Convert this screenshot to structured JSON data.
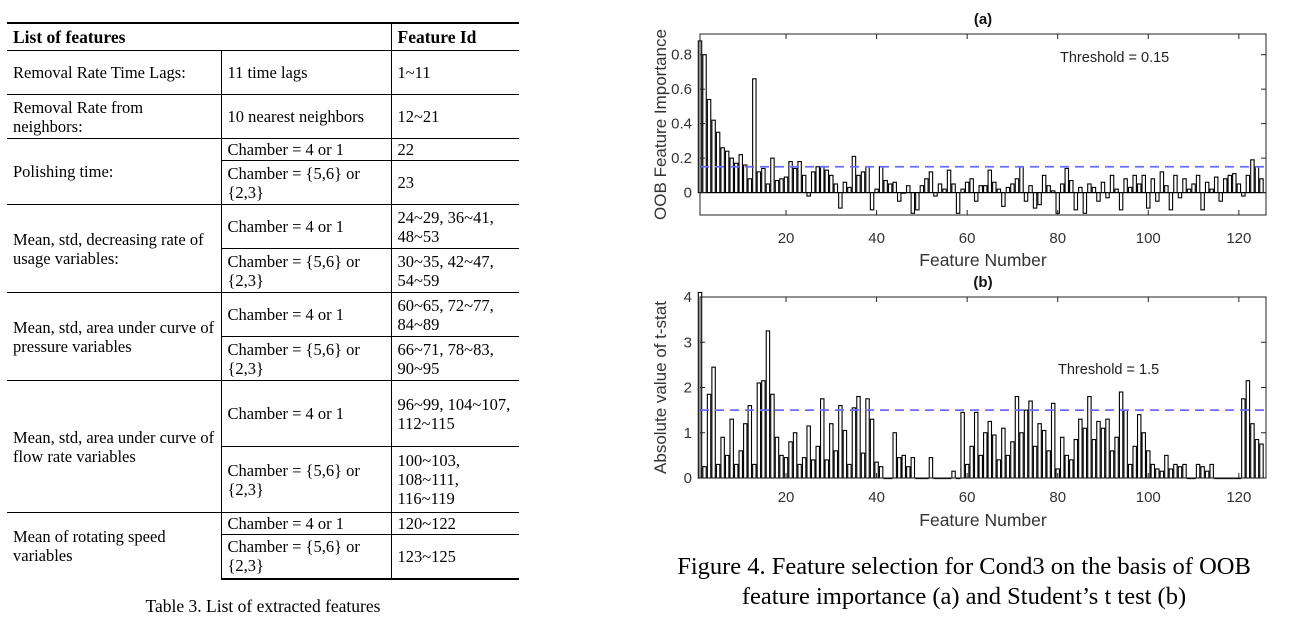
{
  "table": {
    "headers": [
      "List of features",
      "Feature Id"
    ],
    "rows": [
      {
        "group": "Removal Rate Time Lags:",
        "cond": "11 time lags",
        "ids": "1~11"
      },
      {
        "group": "Removal Rate from neighbors:",
        "cond": "10 nearest neighbors",
        "ids": "12~21"
      },
      {
        "group": "Polishing time:",
        "cond": "Chamber = 4 or 1",
        "ids": "22"
      },
      {
        "group": "",
        "cond": "Chamber = {5,6} or {2,3}",
        "ids": "23"
      },
      {
        "group": "Mean, std, decreasing rate of usage variables:",
        "cond": "Chamber = 4 or 1",
        "ids": "24~29, 36~41, 48~53"
      },
      {
        "group": "",
        "cond": "Chamber = {5,6} or {2,3}",
        "ids": "30~35, 42~47, 54~59"
      },
      {
        "group": "Mean, std, area under curve of pressure variables",
        "cond": "Chamber = 4 or 1",
        "ids": "60~65, 72~77, 84~89"
      },
      {
        "group": "",
        "cond": "Chamber = {5,6} or {2,3}",
        "ids": "66~71, 78~83, 90~95"
      },
      {
        "group": "Mean, std, area under curve of flow rate variables",
        "cond": "Chamber = 4 or 1",
        "ids": "96~99, 104~107, 112~115"
      },
      {
        "group": "",
        "cond": "Chamber = {5,6} or {2,3}",
        "ids": "100~103, 108~111, 116~119"
      },
      {
        "group": "Mean of rotating speed variables",
        "cond": "Chamber = 4 or 1",
        "ids": "120~122"
      },
      {
        "group": "",
        "cond": "Chamber = {5,6} or {2,3}",
        "ids": "123~125"
      }
    ],
    "caption": "Table 3. List of extracted features"
  },
  "figure": {
    "caption_line1": "Figure 4. Feature selection for Cond3 on the basis of OOB",
    "caption_line2": "feature importance (a) and Student’s t test (b)"
  },
  "chart_data": [
    {
      "type": "bar",
      "title": "(a)",
      "xlabel": "Feature Number",
      "ylabel": "OOB Feature Importance",
      "xlim": [
        1,
        126
      ],
      "ylim": [
        -0.13,
        0.92
      ],
      "xticks": [
        "20",
        "40",
        "60",
        "80",
        "100",
        "120"
      ],
      "yticks": [
        "0",
        "0.2",
        "0.4",
        "0.6",
        "0.8"
      ],
      "threshold": 0.15,
      "threshold_label": "Threshold = 0.15",
      "threshold_color": "#6b6bff",
      "x": [
        1,
        2,
        3,
        4,
        5,
        6,
        7,
        8,
        9,
        10,
        11,
        12,
        13,
        14,
        15,
        16,
        17,
        18,
        19,
        20,
        21,
        22,
        23,
        24,
        25,
        26,
        27,
        28,
        29,
        30,
        31,
        32,
        33,
        34,
        35,
        36,
        37,
        38,
        39,
        40,
        41,
        42,
        43,
        44,
        45,
        46,
        47,
        48,
        49,
        50,
        51,
        52,
        53,
        54,
        55,
        56,
        57,
        58,
        59,
        60,
        61,
        62,
        63,
        64,
        65,
        66,
        67,
        68,
        69,
        70,
        71,
        72,
        73,
        74,
        75,
        76,
        77,
        78,
        79,
        80,
        81,
        82,
        83,
        84,
        85,
        86,
        87,
        88,
        89,
        90,
        91,
        92,
        93,
        94,
        95,
        96,
        97,
        98,
        99,
        100,
        101,
        102,
        103,
        104,
        105,
        106,
        107,
        108,
        109,
        110,
        111,
        112,
        113,
        114,
        115,
        116,
        117,
        118,
        119,
        120,
        121,
        122,
        123,
        124,
        125
      ],
      "values": [
        0.88,
        0.8,
        0.54,
        0.42,
        0.35,
        0.26,
        0.24,
        0.2,
        0.17,
        0.22,
        0.16,
        0.08,
        0.66,
        0.12,
        0.14,
        0.05,
        0.2,
        0.07,
        0.08,
        0.09,
        0.18,
        0.14,
        0.18,
        0.1,
        -0.02,
        0.12,
        0.15,
        0.15,
        0.13,
        0.1,
        0.05,
        -0.09,
        0.06,
        0.03,
        0.21,
        0.1,
        0.12,
        0.15,
        -0.1,
        0.02,
        0.15,
        0.07,
        0.05,
        0.06,
        -0.05,
        0.0,
        0.04,
        -0.12,
        -0.1,
        0.04,
        0.08,
        0.12,
        -0.02,
        0.05,
        0.02,
        0.13,
        0.05,
        -0.12,
        0.02,
        0.06,
        0.08,
        -0.05,
        0.04,
        0.04,
        0.13,
        0.06,
        0.02,
        -0.08,
        0.03,
        0.05,
        0.08,
        0.15,
        -0.05,
        0.04,
        -0.09,
        -0.07,
        0.1,
        0.04,
        0.01,
        -0.12,
        0.05,
        0.14,
        0.07,
        -0.1,
        0.03,
        -0.12,
        0.05,
        0.03,
        -0.05,
        0.06,
        -0.03,
        0.1,
        0.02,
        -0.1,
        0.08,
        0.03,
        0.1,
        0.05,
        0.1,
        -0.09,
        0.08,
        -0.05,
        0.12,
        0.04,
        -0.1,
        0.1,
        -0.03,
        0.08,
        0.02,
        0.05,
        0.1,
        -0.1,
        0.06,
        0.02,
        0.09,
        -0.05,
        0.08,
        0.1,
        0.11,
        0.05,
        -0.02,
        0.1,
        0.19,
        0.15,
        0.08
      ]
    },
    {
      "type": "bar",
      "title": "(b)",
      "xlabel": "Feature Number",
      "ylabel": "Absolute value of t-stat",
      "xlim": [
        1,
        126
      ],
      "ylim": [
        0,
        4.0
      ],
      "xticks": [
        "20",
        "40",
        "60",
        "80",
        "100",
        "120"
      ],
      "yticks": [
        "0",
        "1",
        "2",
        "3",
        "4"
      ],
      "threshold": 1.5,
      "threshold_label": "Threshold = 1.5",
      "threshold_color": "#6b6bff",
      "x": [
        1,
        2,
        3,
        4,
        5,
        6,
        7,
        8,
        9,
        10,
        11,
        12,
        13,
        14,
        15,
        16,
        17,
        18,
        19,
        20,
        21,
        22,
        23,
        24,
        25,
        26,
        27,
        28,
        29,
        30,
        31,
        32,
        33,
        34,
        35,
        36,
        37,
        38,
        39,
        40,
        41,
        42,
        43,
        44,
        45,
        46,
        47,
        48,
        49,
        50,
        51,
        52,
        53,
        54,
        55,
        56,
        57,
        58,
        59,
        60,
        61,
        62,
        63,
        64,
        65,
        66,
        67,
        68,
        69,
        70,
        71,
        72,
        73,
        74,
        75,
        76,
        77,
        78,
        79,
        80,
        81,
        82,
        83,
        84,
        85,
        86,
        87,
        88,
        89,
        90,
        91,
        92,
        93,
        94,
        95,
        96,
        97,
        98,
        99,
        100,
        101,
        102,
        103,
        104,
        105,
        106,
        107,
        108,
        109,
        110,
        111,
        112,
        113,
        114,
        115,
        116,
        117,
        118,
        119,
        120,
        121,
        122,
        123,
        124,
        125
      ],
      "values": [
        4.1,
        0.25,
        1.85,
        2.45,
        0.3,
        0.9,
        0.5,
        1.3,
        0.3,
        0.6,
        1.2,
        1.6,
        0.3,
        2.1,
        2.15,
        3.25,
        1.85,
        0.9,
        0.5,
        0.45,
        0.8,
        1.0,
        0.3,
        0.45,
        1.15,
        0.4,
        0.7,
        1.75,
        0.4,
        1.2,
        0.6,
        1.6,
        1.05,
        0.3,
        1.55,
        1.8,
        0.55,
        1.75,
        1.3,
        0.35,
        0.25,
        0.0,
        0.0,
        1.0,
        0.45,
        0.5,
        0.25,
        0.45,
        0.0,
        0.0,
        0.0,
        0.45,
        0.0,
        0.0,
        0.0,
        0.0,
        0.15,
        0.0,
        1.45,
        0.3,
        0.7,
        1.45,
        0.5,
        1.0,
        1.25,
        0.95,
        0.4,
        1.1,
        0.5,
        0.8,
        1.8,
        1.0,
        1.5,
        1.7,
        0.7,
        1.2,
        1.05,
        0.6,
        1.65,
        0.2,
        0.9,
        0.5,
        0.4,
        0.85,
        1.3,
        1.1,
        1.8,
        0.85,
        1.25,
        1.1,
        1.3,
        0.6,
        0.9,
        1.9,
        1.5,
        0.3,
        0.7,
        1.4,
        1.0,
        0.6,
        0.3,
        0.2,
        0.15,
        0.5,
        0.2,
        0.3,
        0.25,
        0.3,
        0.0,
        0.0,
        0.3,
        0.25,
        0.15,
        0.3,
        0.0,
        0.0,
        0.0,
        0.0,
        0.0,
        0.0,
        1.75,
        2.15,
        1.2,
        0.85,
        0.75
      ]
    }
  ]
}
